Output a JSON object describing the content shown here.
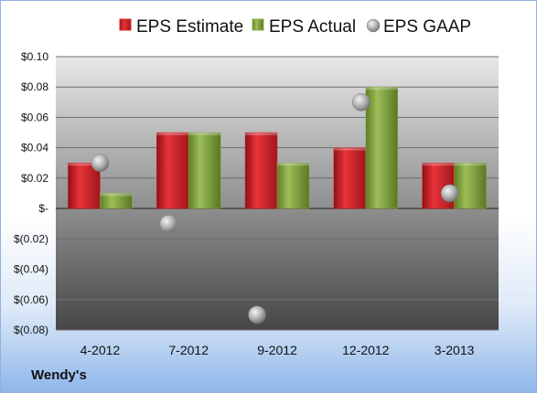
{
  "company": "Wendy's",
  "colors": {
    "estimate": "#d9262b",
    "actual": "#8cac4a",
    "gaap": "#b0b0b0",
    "plot_top": "#e7e7e7",
    "plot_bottom": "#474747"
  },
  "chart_data": {
    "type": "bar",
    "categories": [
      "4-2012",
      "7-2012",
      "9-2012",
      "12-2012",
      "3-2013"
    ],
    "series": [
      {
        "name": "EPS Estimate",
        "kind": "bar",
        "values": [
          0.03,
          0.05,
          0.05,
          0.04,
          0.03
        ]
      },
      {
        "name": "EPS Actual",
        "kind": "bar",
        "values": [
          0.01,
          0.05,
          0.03,
          0.08,
          0.03
        ]
      },
      {
        "name": "EPS GAAP",
        "kind": "marker",
        "values": [
          0.03,
          -0.01,
          -0.07,
          0.07,
          0.01
        ]
      }
    ],
    "y_ticks": [
      {
        "value": 0.1,
        "label": "$0.10"
      },
      {
        "value": 0.08,
        "label": "$0.08"
      },
      {
        "value": 0.06,
        "label": "$0.06"
      },
      {
        "value": 0.04,
        "label": "$0.04"
      },
      {
        "value": 0.02,
        "label": "$0.02"
      },
      {
        "value": 0,
        "label": "$-"
      },
      {
        "value": -0.02,
        "label": "$(0.02)"
      },
      {
        "value": -0.04,
        "label": "$(0.04)"
      },
      {
        "value": -0.06,
        "label": "$(0.06)"
      },
      {
        "value": -0.08,
        "label": "$(0.08)"
      }
    ],
    "ylim": [
      -0.08,
      0.1
    ],
    "grid": true,
    "legend_position": "top"
  }
}
